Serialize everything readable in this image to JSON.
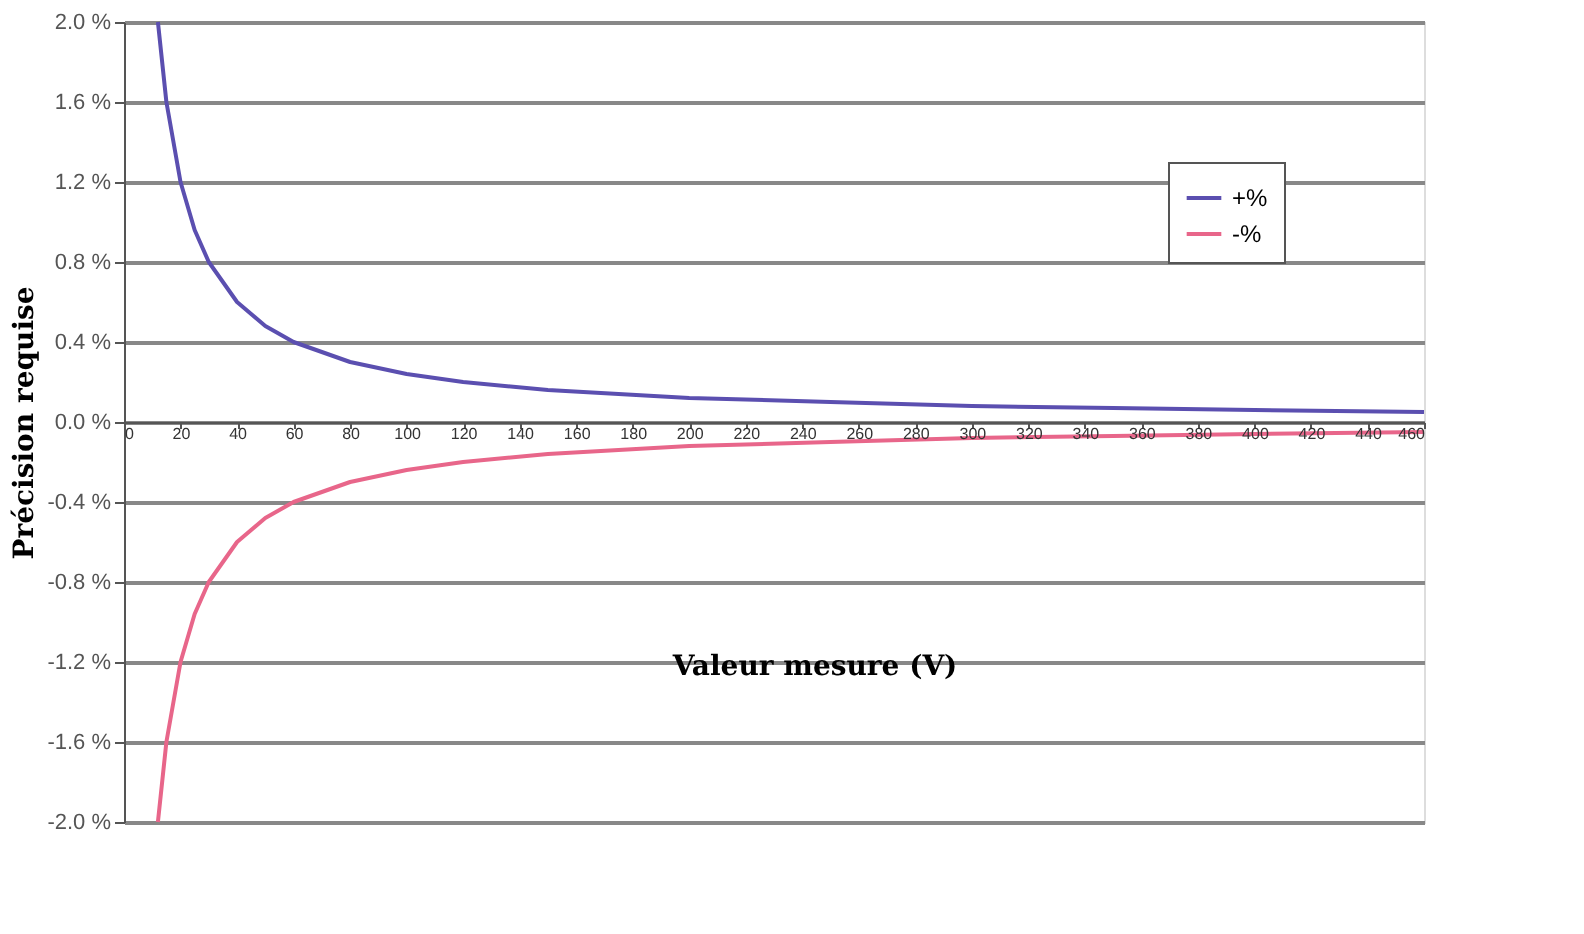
{
  "chart_data": {
    "type": "line",
    "xlabel": "Valeur mesure (V)",
    "ylabel": "Précision requise",
    "x": [
      12,
      15,
      20,
      25,
      30,
      40,
      50,
      60,
      80,
      100,
      120,
      150,
      200,
      250,
      300,
      350,
      400,
      460
    ],
    "series": [
      {
        "name": "+%",
        "color": "#5b4fb0",
        "values": [
          2.0,
          1.6,
          1.2,
          0.96,
          0.8,
          0.6,
          0.48,
          0.4,
          0.3,
          0.24,
          0.2,
          0.16,
          0.12,
          0.1,
          0.08,
          0.07,
          0.06,
          0.05
        ]
      },
      {
        "name": "-%",
        "color": "#e8668a",
        "values": [
          -2.0,
          -1.6,
          -1.2,
          -0.96,
          -0.8,
          -0.6,
          -0.48,
          -0.4,
          -0.3,
          -0.24,
          -0.2,
          -0.16,
          -0.12,
          -0.1,
          -0.08,
          -0.07,
          -0.06,
          -0.05
        ]
      }
    ],
    "xlim": [
      0,
      460
    ],
    "xticks": [
      0,
      20,
      40,
      60,
      80,
      100,
      120,
      140,
      160,
      180,
      200,
      220,
      240,
      260,
      280,
      300,
      320,
      340,
      360,
      380,
      400,
      420,
      440,
      460
    ],
    "ylim": [
      -2.0,
      2.0
    ],
    "yticks": [
      {
        "value": -2.0,
        "label": "-2.0 %"
      },
      {
        "value": -1.6,
        "label": "-1.6 %"
      },
      {
        "value": -1.2,
        "label": "-1.2 %"
      },
      {
        "value": -0.8,
        "label": "-0.8 %"
      },
      {
        "value": -0.4,
        "label": "-0.4 %"
      },
      {
        "value": 0.0,
        "label": "0.0 %"
      },
      {
        "value": 0.4,
        "label": "0.4 %"
      },
      {
        "value": 0.8,
        "label": "0.8 %"
      },
      {
        "value": 1.2,
        "label": "1.2 %"
      },
      {
        "value": 1.6,
        "label": "1.6 %"
      },
      {
        "value": 2.0,
        "label": "2.0 %"
      }
    ],
    "grid": "y",
    "legend": "top right",
    "marker": "none",
    "line_style": "solid"
  }
}
